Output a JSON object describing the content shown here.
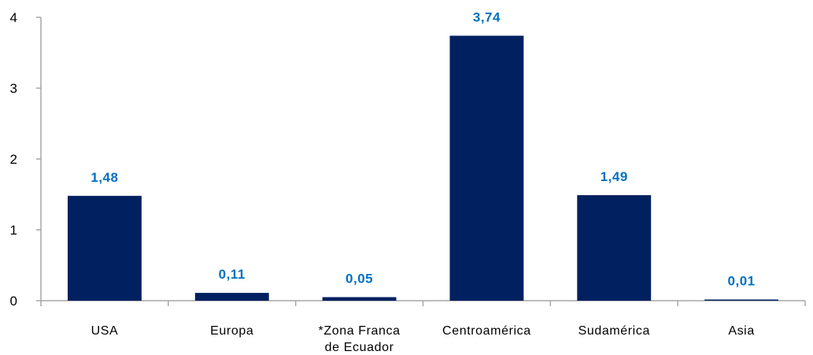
{
  "colors": {
    "bar": "#002060",
    "data_label": "#0070C0",
    "axis": "#a6a6a6"
  },
  "chart_data": {
    "type": "bar",
    "title": "",
    "xlabel": "",
    "ylabel": "",
    "categories": [
      "USA",
      "Europa",
      "*Zona Franca de Ecuador",
      "Centroamérica",
      "Sudamérica",
      "Asia"
    ],
    "category_lines": [
      [
        "USA"
      ],
      [
        "Europa"
      ],
      [
        "*Zona Franca",
        "de Ecuador"
      ],
      [
        "Centroamérica"
      ],
      [
        "Sudamérica"
      ],
      [
        "Asia"
      ]
    ],
    "values": [
      1.48,
      0.11,
      0.05,
      3.74,
      1.49,
      0.01
    ],
    "data_labels": [
      "1,48",
      "0,11",
      "0,05",
      "3,74",
      "1,49",
      "0,01"
    ],
    "ylim": [
      0,
      4
    ],
    "yticks": [
      0,
      1,
      2,
      3,
      4
    ],
    "ytick_labels": [
      "0",
      "1",
      "2",
      "3",
      "4"
    ],
    "grid": false,
    "legend": "none"
  }
}
